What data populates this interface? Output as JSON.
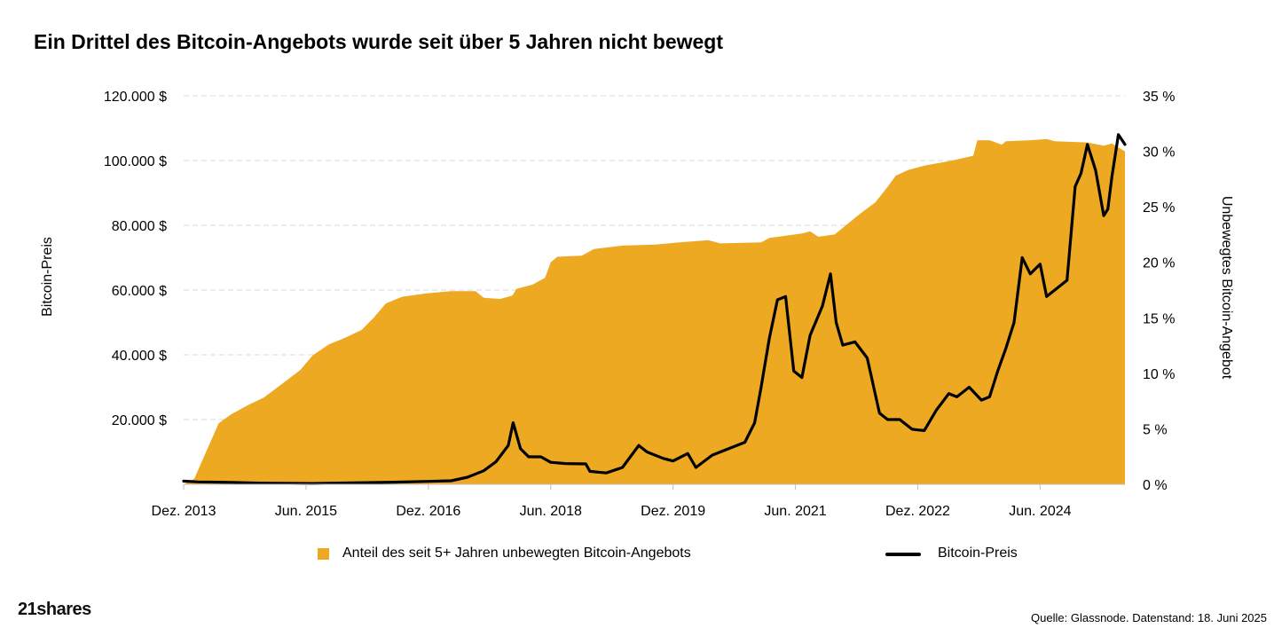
{
  "chart_data": {
    "type": "area+line",
    "title": "Ein Drittel des Bitcoin-Angebots wurde seit über 5 Jahren nicht bewegt",
    "ylabel_left": "Bitcoin-Preis",
    "ylabel_right": "Unbewegtes Bitcoin-Angebot",
    "x_range": [
      2013.92,
      2025.46
    ],
    "x_ticks": [
      {
        "x": 2013.92,
        "label": "Dez. 2013"
      },
      {
        "x": 2015.42,
        "label": "Jun. 2015"
      },
      {
        "x": 2016.92,
        "label": "Dez. 2016"
      },
      {
        "x": 2018.42,
        "label": "Jun. 2018"
      },
      {
        "x": 2019.92,
        "label": "Dez. 2019"
      },
      {
        "x": 2021.42,
        "label": "Jun. 2021"
      },
      {
        "x": 2022.92,
        "label": "Dez. 2022"
      },
      {
        "x": 2024.42,
        "label": "Jun. 2024"
      }
    ],
    "ylim_left": [
      0,
      120000
    ],
    "ylim_right": [
      0,
      35
    ],
    "left_ticks": [
      {
        "v": 20000,
        "label": "20.000 $"
      },
      {
        "v": 40000,
        "label": "40.000 $"
      },
      {
        "v": 60000,
        "label": "60.000 $"
      },
      {
        "v": 80000,
        "label": "80.000 $"
      },
      {
        "v": 100000,
        "label": "100.000 $"
      },
      {
        "v": 120000,
        "label": "120.000 $"
      }
    ],
    "right_ticks": [
      {
        "v": 0,
        "label": "0 %"
      },
      {
        "v": 5,
        "label": "5 %"
      },
      {
        "v": 10,
        "label": "10 %"
      },
      {
        "v": 15,
        "label": "15 %"
      },
      {
        "v": 20,
        "label": "20 %"
      },
      {
        "v": 25,
        "label": "25 %"
      },
      {
        "v": 30,
        "label": "30 %"
      },
      {
        "v": 35,
        "label": "35 %"
      }
    ],
    "grid": "horizontal dashed",
    "legend_position": "bottom",
    "colors": {
      "area": "#EDA922",
      "line": "#000000",
      "grid": "#D9D9D9"
    },
    "series": [
      {
        "name": "Anteil des seit 5+ Jahren unbewegten Bitcoin-Angebots",
        "axis": "right",
        "type": "area",
        "points": [
          [
            2013.92,
            0.0
          ],
          [
            2014.05,
            0.5
          ],
          [
            2014.2,
            3.0
          ],
          [
            2014.35,
            5.5
          ],
          [
            2014.5,
            6.3
          ],
          [
            2014.7,
            7.1
          ],
          [
            2014.9,
            7.8
          ],
          [
            2015.1,
            8.9
          ],
          [
            2015.35,
            10.3
          ],
          [
            2015.5,
            11.6
          ],
          [
            2015.7,
            12.6
          ],
          [
            2015.9,
            13.2
          ],
          [
            2016.1,
            13.9
          ],
          [
            2016.25,
            15.0
          ],
          [
            2016.4,
            16.3
          ],
          [
            2016.6,
            16.9
          ],
          [
            2016.9,
            17.2
          ],
          [
            2017.2,
            17.4
          ],
          [
            2017.5,
            17.4
          ],
          [
            2017.6,
            16.8
          ],
          [
            2017.8,
            16.7
          ],
          [
            2017.95,
            17.0
          ],
          [
            2018.0,
            17.6
          ],
          [
            2018.2,
            18.0
          ],
          [
            2018.35,
            18.6
          ],
          [
            2018.42,
            20.0
          ],
          [
            2018.5,
            20.5
          ],
          [
            2018.8,
            20.6
          ],
          [
            2018.95,
            21.2
          ],
          [
            2019.3,
            21.5
          ],
          [
            2019.7,
            21.6
          ],
          [
            2020.0,
            21.8
          ],
          [
            2020.35,
            22.0
          ],
          [
            2020.5,
            21.7
          ],
          [
            2021.0,
            21.8
          ],
          [
            2021.1,
            22.2
          ],
          [
            2021.5,
            22.6
          ],
          [
            2021.6,
            22.8
          ],
          [
            2021.7,
            22.3
          ],
          [
            2021.9,
            22.5
          ],
          [
            2022.0,
            23.1
          ],
          [
            2022.2,
            24.3
          ],
          [
            2022.4,
            25.4
          ],
          [
            2022.55,
            26.8
          ],
          [
            2022.65,
            27.8
          ],
          [
            2022.8,
            28.3
          ],
          [
            2023.0,
            28.7
          ],
          [
            2023.3,
            29.1
          ],
          [
            2023.6,
            29.6
          ],
          [
            2023.65,
            31.0
          ],
          [
            2023.8,
            31.0
          ],
          [
            2023.95,
            30.6
          ],
          [
            2024.0,
            30.9
          ],
          [
            2024.3,
            31.0
          ],
          [
            2024.5,
            31.1
          ],
          [
            2024.6,
            30.9
          ],
          [
            2025.0,
            30.8
          ],
          [
            2025.2,
            30.5
          ],
          [
            2025.3,
            30.7
          ],
          [
            2025.46,
            30.0
          ]
        ]
      },
      {
        "name": "Bitcoin-Preis",
        "axis": "left",
        "type": "line",
        "points": [
          [
            2013.92,
            1000
          ],
          [
            2014.1,
            750
          ],
          [
            2014.5,
            600
          ],
          [
            2014.9,
            350
          ],
          [
            2015.5,
            250
          ],
          [
            2016.0,
            430
          ],
          [
            2016.5,
            650
          ],
          [
            2016.92,
            900
          ],
          [
            2017.2,
            1100
          ],
          [
            2017.4,
            2200
          ],
          [
            2017.6,
            4200
          ],
          [
            2017.75,
            7000
          ],
          [
            2017.9,
            12000
          ],
          [
            2017.96,
            19000
          ],
          [
            2018.05,
            11000
          ],
          [
            2018.15,
            8500
          ],
          [
            2018.3,
            8500
          ],
          [
            2018.42,
            6800
          ],
          [
            2018.6,
            6400
          ],
          [
            2018.85,
            6300
          ],
          [
            2018.9,
            4000
          ],
          [
            2019.1,
            3500
          ],
          [
            2019.3,
            5200
          ],
          [
            2019.5,
            12000
          ],
          [
            2019.6,
            10000
          ],
          [
            2019.8,
            8000
          ],
          [
            2019.92,
            7200
          ],
          [
            2020.1,
            9500
          ],
          [
            2020.2,
            5200
          ],
          [
            2020.4,
            9000
          ],
          [
            2020.6,
            11000
          ],
          [
            2020.8,
            13000
          ],
          [
            2020.92,
            19000
          ],
          [
            2021.0,
            30000
          ],
          [
            2021.1,
            45000
          ],
          [
            2021.2,
            57000
          ],
          [
            2021.3,
            58000
          ],
          [
            2021.4,
            35000
          ],
          [
            2021.5,
            33000
          ],
          [
            2021.6,
            46000
          ],
          [
            2021.75,
            55000
          ],
          [
            2021.85,
            65000
          ],
          [
            2021.92,
            50000
          ],
          [
            2022.0,
            43000
          ],
          [
            2022.15,
            44000
          ],
          [
            2022.3,
            39000
          ],
          [
            2022.45,
            22000
          ],
          [
            2022.55,
            20000
          ],
          [
            2022.7,
            20000
          ],
          [
            2022.85,
            17000
          ],
          [
            2022.92,
            16800
          ],
          [
            2023.0,
            16600
          ],
          [
            2023.15,
            23000
          ],
          [
            2023.3,
            28000
          ],
          [
            2023.4,
            27000
          ],
          [
            2023.55,
            30000
          ],
          [
            2023.7,
            26000
          ],
          [
            2023.8,
            27000
          ],
          [
            2023.9,
            35000
          ],
          [
            2024.0,
            42000
          ],
          [
            2024.1,
            50000
          ],
          [
            2024.2,
            70000
          ],
          [
            2024.3,
            65000
          ],
          [
            2024.42,
            68000
          ],
          [
            2024.5,
            58000
          ],
          [
            2024.6,
            60000
          ],
          [
            2024.75,
            63000
          ],
          [
            2024.85,
            92000
          ],
          [
            2024.92,
            96000
          ],
          [
            2025.0,
            105000
          ],
          [
            2025.1,
            97000
          ],
          [
            2025.2,
            83000
          ],
          [
            2025.25,
            85000
          ],
          [
            2025.3,
            95000
          ],
          [
            2025.38,
            108000
          ],
          [
            2025.46,
            105000
          ]
        ]
      }
    ]
  },
  "legend": {
    "area_label": "Anteil des seit 5+ Jahren unbewegten Bitcoin-Angebots",
    "line_label": "Bitcoin-Preis"
  },
  "footer": {
    "logo": "21shares",
    "source": "Quelle: Glassnode. Datenstand: 18. Juni 2025"
  }
}
